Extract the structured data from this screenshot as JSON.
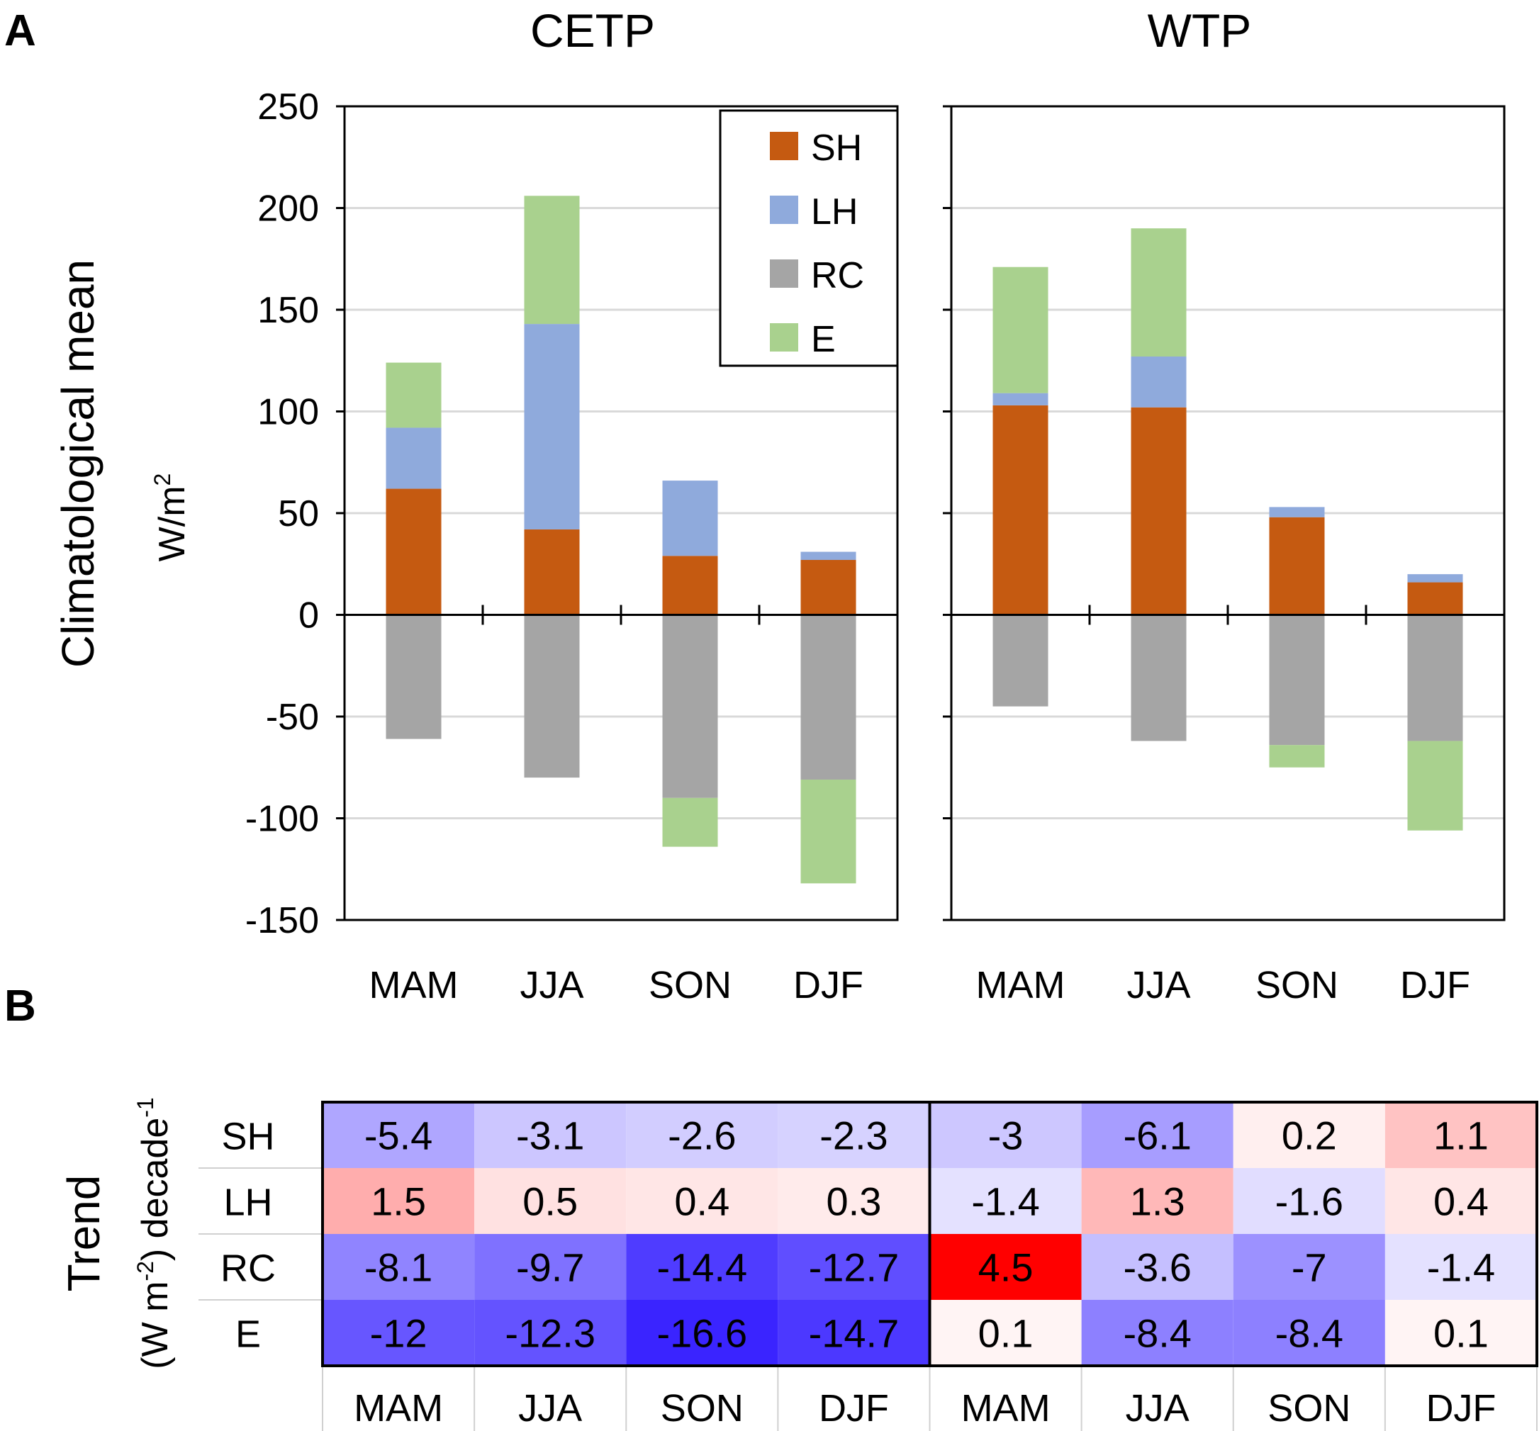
{
  "panel_letters": {
    "a": "A",
    "b": "B"
  },
  "chart_data": [
    {
      "type": "bar",
      "stacked": true,
      "title": "CETP",
      "ylabel": "Climatological mean",
      "yunit": {
        "base": "W/m",
        "sup": "2"
      },
      "ylim": [
        -150,
        250
      ],
      "yticks": [
        -150,
        -100,
        -50,
        0,
        50,
        100,
        150,
        200,
        250
      ],
      "grid": true,
      "legend_position": "top-right",
      "categories": [
        "MAM",
        "JJA",
        "SON",
        "DJF"
      ],
      "series": [
        {
          "name": "SH",
          "color": "#c55a11",
          "values": [
            62,
            42,
            29,
            27
          ]
        },
        {
          "name": "LH",
          "color": "#8faadc",
          "values": [
            30,
            101,
            37,
            4
          ]
        },
        {
          "name": "RC",
          "color": "#a5a5a5",
          "values": [
            -61,
            -80,
            -90,
            -81
          ]
        },
        {
          "name": "E",
          "color": "#a9d18e",
          "values": [
            32,
            63,
            -24,
            -51
          ]
        }
      ]
    },
    {
      "type": "bar",
      "stacked": true,
      "title": "WTP",
      "ylim": [
        -150,
        250
      ],
      "yticks": [
        -150,
        -100,
        -50,
        0,
        50,
        100,
        150,
        200,
        250
      ],
      "grid": true,
      "categories": [
        "MAM",
        "JJA",
        "SON",
        "DJF"
      ],
      "series": [
        {
          "name": "SH",
          "color": "#c55a11",
          "values": [
            103,
            102,
            48,
            16
          ]
        },
        {
          "name": "LH",
          "color": "#8faadc",
          "values": [
            6,
            25,
            5,
            4
          ]
        },
        {
          "name": "RC",
          "color": "#a5a5a5",
          "values": [
            -45,
            -62,
            -64,
            -62
          ]
        },
        {
          "name": "E",
          "color": "#a9d18e",
          "values": [
            62,
            63,
            -11,
            -44
          ]
        }
      ]
    },
    {
      "type": "heatmap",
      "ylabel": "Trend",
      "yunit": {
        "p1": "(W m",
        "sup1": "-2",
        "p2": ") decade",
        "sup2": "-1"
      },
      "rows": [
        "SH",
        "LH",
        "RC",
        "E"
      ],
      "columns": [
        "MAM",
        "JJA",
        "SON",
        "DJF",
        "MAM",
        "JJA",
        "SON",
        "DJF"
      ],
      "column_groups": [
        {
          "name": "CETP",
          "span": 4
        },
        {
          "name": "WTP",
          "span": 4
        }
      ],
      "values": [
        [
          -5.4,
          -3.1,
          -2.6,
          -2.3,
          -3,
          -6.1,
          0.2,
          1.1
        ],
        [
          1.5,
          0.5,
          0.4,
          0.3,
          -1.4,
          1.3,
          -1.6,
          0.4
        ],
        [
          -8.1,
          -9.7,
          -14.4,
          -12.7,
          4.5,
          -3.6,
          -7,
          -1.4
        ],
        [
          -12,
          -12.3,
          -16.6,
          -14.7,
          0.1,
          -8.4,
          -8.4,
          0.1
        ]
      ],
      "color_scale": {
        "negative": "#3a24ff",
        "positive": "#ff0000",
        "neg_max": 16.6,
        "pos_max": 4.5
      }
    }
  ]
}
